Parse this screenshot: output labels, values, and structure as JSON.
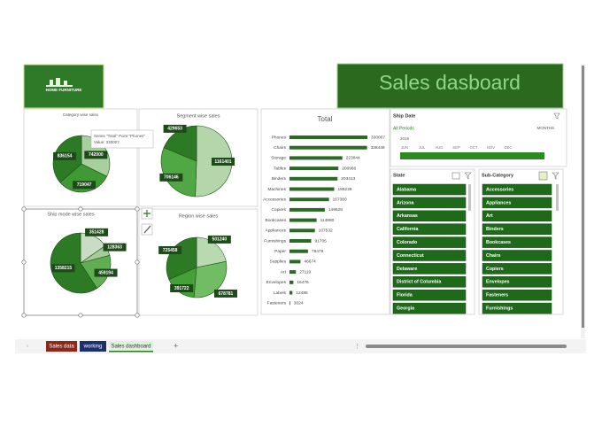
{
  "header": {
    "logo_text": "HOME FURNITURE",
    "title": "Sales dasboard"
  },
  "chart_data": [
    {
      "type": "pie",
      "title": "Category wise sales",
      "values": [
        742000,
        719047,
        836154
      ],
      "colors": [
        "#a9cf9f",
        "#3f9a35",
        "#2d7a25"
      ]
    },
    {
      "type": "pie",
      "title": "Segment wise sales",
      "values": [
        1161401,
        706146,
        429653
      ],
      "colors": [
        "#b5d6ab",
        "#4fa843",
        "#2d7a25"
      ]
    },
    {
      "type": "pie",
      "title": "Ship mode wise sales",
      "values": [
        351428,
        128363,
        459194,
        1358215
      ],
      "colors": [
        "#c9ddc4",
        "#a5cc9a",
        "#5fae52",
        "#2d7a25"
      ]
    },
    {
      "type": "pie",
      "title": "Region wise sales",
      "values": [
        501240,
        678781,
        391722,
        725458
      ],
      "colors": [
        "#b9d9b0",
        "#72bd63",
        "#45a03a",
        "#2d7a25"
      ]
    },
    {
      "type": "bar",
      "title": "Total",
      "color": "#2a6a25",
      "categories": [
        "Phones",
        "Chairs",
        "Storage",
        "Tables",
        "Binders",
        "Machines",
        "Accessories",
        "Copiers",
        "Bookcases",
        "Appliances",
        "Furnishings",
        "Paper",
        "Supplies",
        "Art",
        "Envelopes",
        "Labels",
        "Fasteners"
      ],
      "values": [
        330007,
        328449,
        223844,
        206966,
        203413,
        189239,
        167380,
        149528,
        114880,
        107532,
        91705,
        78479,
        46674,
        27119,
        16476,
        12486,
        3024
      ]
    }
  ],
  "tooltip": {
    "line1": "Series \"Total\" Point \"Phones\"",
    "line2": "Value: 330007"
  },
  "slicers": {
    "ship_date": {
      "title": "Ship Date",
      "range": "All Periods",
      "level": "MONTHS",
      "year": "2019",
      "months": [
        "JUN",
        "JUL",
        "AUG",
        "SEP",
        "OCT",
        "NOV",
        "DEC"
      ]
    },
    "state": {
      "title": "State",
      "items": [
        "Alabama",
        "Arizona",
        "Arkansas",
        "California",
        "Colorado",
        "Connecticut",
        "Delaware",
        "District of Columbia",
        "Florida",
        "Georgia"
      ]
    },
    "sub_category": {
      "title": "Sub-Category",
      "items": [
        "Accessories",
        "Appliances",
        "Art",
        "Binders",
        "Bookcases",
        "Chairs",
        "Copiers",
        "Envelopes",
        "Fasteners",
        "Furnishings"
      ]
    }
  },
  "sheet_tabs": [
    "Sales data",
    "working",
    "Sales dashboard"
  ]
}
